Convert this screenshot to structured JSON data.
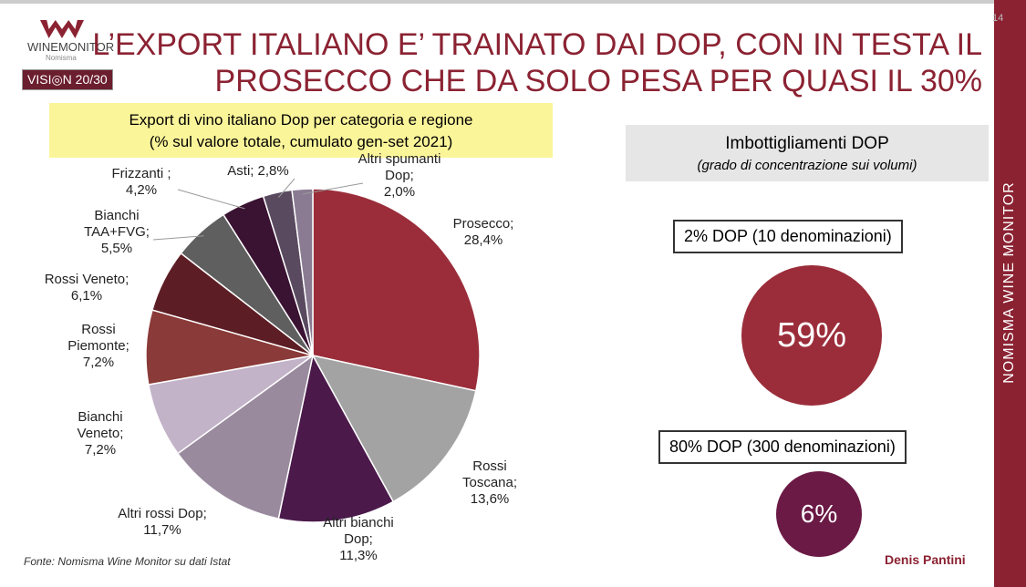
{
  "header": {
    "logo": "WINEMONITOR",
    "logo_sub": "Nomisma",
    "badge": "VISI◎N 20/30",
    "title_line1": "L’EXPORT ITALIANO E’ TRAINATO DAI DOP, CON IN TESTA IL",
    "title_line2": "PROSECCO CHE DA SOLO PESA PER QUASI IL 30%",
    "page": "14",
    "side": "NOMISMA WINE MONITOR"
  },
  "chart_data": {
    "type": "pie",
    "title": "Export di vino italiano Dop per categoria e regione",
    "subtitle": "(% sul valore totale, cumulato gen-set 2021)",
    "categories": [
      "Prosecco;",
      "Rossi\nToscana;",
      "Altri bianchi\nDop;",
      "Altri rossi Dop;",
      "Bianchi\nVeneto;",
      "Rossi\nPiemonte;",
      "Rossi Veneto;",
      "Bianchi\nTAA+FVG;",
      "Frizzanti ;",
      "Asti;",
      "Altri spumanti\nDop;"
    ],
    "values": [
      28.4,
      13.6,
      11.3,
      11.7,
      7.2,
      7.2,
      6.1,
      5.5,
      4.2,
      2.8,
      2.0
    ],
    "value_labels": [
      "28,4%",
      "13,6%",
      "11,3%",
      "11,7%",
      "7,2%",
      "7,2%",
      "6,1%",
      "5,5%",
      "4,2%",
      "2,8%",
      "2,0%"
    ],
    "colors": [
      "#9b2d3a",
      "#a3a3a3",
      "#4b1a4b",
      "#9a8a9e",
      "#c2b3c8",
      "#8a3a38",
      "#5c1e24",
      "#5f5f5f",
      "#3a1232",
      "#5a4a60",
      "#8a7b92"
    ]
  },
  "panel": {
    "title": "Imbottigliamenti DOP",
    "subtitle": "(grado di concentrazione sui volumi)",
    "box1": "2% DOP (10 denominazioni)",
    "circle1": "59%",
    "box2": "80% DOP (300 denominazioni)",
    "circle2": "6%"
  },
  "footer": {
    "source": "Fonte: Nomisma Wine Monitor su dati Istat",
    "author": "Denis Pantini"
  }
}
